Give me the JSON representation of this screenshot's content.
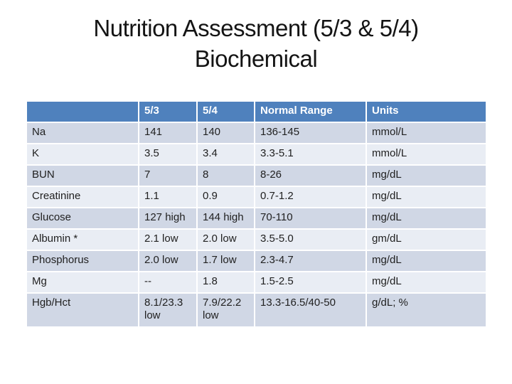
{
  "slide": {
    "title_line1": "Nutrition Assessment (5/3 & 5/4)",
    "title_line2": "Biochemical"
  },
  "colors": {
    "header_bg": "#4f81bd",
    "header_text": "#ffffff",
    "band_dark": "#d0d7e5",
    "band_light": "#e9edf4",
    "body_text": "#212121",
    "abnormal_text": "#c0343c"
  },
  "table": {
    "headers": [
      "",
      "5/3",
      "5/4",
      "Normal Range",
      "Units"
    ],
    "rows": [
      {
        "cells": [
          {
            "t": "Na"
          },
          {
            "t": "141"
          },
          {
            "t": "140"
          },
          {
            "t": "136-145"
          },
          {
            "t": "mmol/L"
          }
        ]
      },
      {
        "cells": [
          {
            "t": "K"
          },
          {
            "t": "3.5"
          },
          {
            "t": "3.4"
          },
          {
            "t": "3.3-5.1"
          },
          {
            "t": "mmol/L"
          }
        ]
      },
      {
        "cells": [
          {
            "t": "BUN"
          },
          {
            "t": "7"
          },
          {
            "t": "8"
          },
          {
            "t": "8-26"
          },
          {
            "t": "mg/dL"
          }
        ]
      },
      {
        "cells": [
          {
            "t": "Creatinine"
          },
          {
            "t": "1.1"
          },
          {
            "t": "0.9"
          },
          {
            "t": "0.7-1.2"
          },
          {
            "t": "mg/dL"
          }
        ]
      },
      {
        "cells": [
          {
            "t": "Glucose"
          },
          {
            "t": "127 high",
            "abnormal": true
          },
          {
            "t": "144 high",
            "abnormal": true
          },
          {
            "t": "70-110"
          },
          {
            "t": "mg/dL"
          }
        ]
      },
      {
        "cells": [
          {
            "t": "Albumin *"
          },
          {
            "t": "2.1 low",
            "abnormal": true
          },
          {
            "t": "2.0 low",
            "abnormal": true
          },
          {
            "t": "3.5-5.0"
          },
          {
            "t": "gm/dL"
          }
        ]
      },
      {
        "cells": [
          {
            "t": "Phosphorus"
          },
          {
            "t": "2.0 low",
            "abnormal": true
          },
          {
            "t": "1.7 low",
            "abnormal": true
          },
          {
            "t": "2.3-4.7"
          },
          {
            "t": "mg/dL"
          }
        ]
      },
      {
        "cells": [
          {
            "t": "Mg"
          },
          {
            "t": "--"
          },
          {
            "t": "1.8"
          },
          {
            "t": "1.5-2.5"
          },
          {
            "t": "mg/dL"
          }
        ]
      },
      {
        "cells": [
          {
            "t": "Hgb/Hct"
          },
          {
            "t": "8.1/23.3 low",
            "abnormal": true
          },
          {
            "t": "7.9/22.2 low",
            "abnormal": true
          },
          {
            "t": "13.3-16.5/40-50"
          },
          {
            "t": "g/dL; %"
          }
        ]
      }
    ]
  }
}
